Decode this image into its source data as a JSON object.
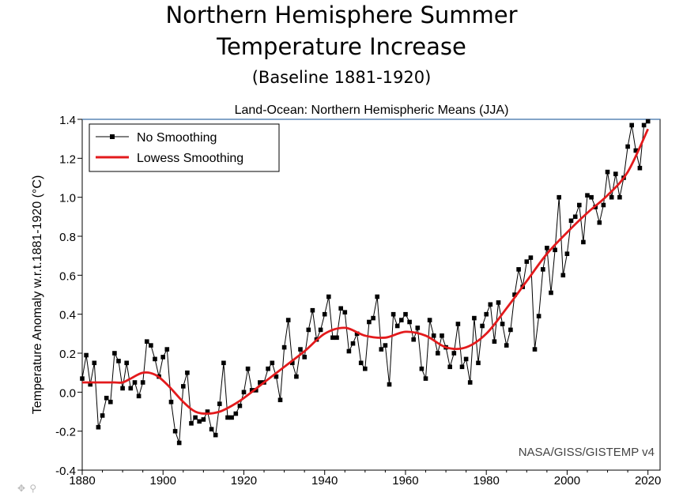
{
  "slide": {
    "title_line1": "Northern Hemisphere Summer",
    "title_line2": "Temperature Increase",
    "title_line3": "(Baseline 1881-1920)"
  },
  "toolbar": {
    "icons": [
      "move-icon",
      "zoom-icon"
    ]
  },
  "chart_data": {
    "type": "line",
    "title": "Land-Ocean: Northern Hemispheric Means (JJA)",
    "xlabel": "",
    "ylabel": "Temperature Anomaly w.r.t.1881-1920 (°C)",
    "source_label": "NASA/GISS/GISTEMP v4",
    "xlim": [
      1880,
      2023
    ],
    "ylim": [
      -0.4,
      1.4
    ],
    "xticks": [
      1880,
      1900,
      1920,
      1940,
      1960,
      1980,
      2000,
      2020
    ],
    "yticks": [
      "-0.4",
      "-0.2",
      "0.0",
      "0.2",
      "0.4",
      "0.6",
      "0.8",
      "1.0",
      "1.2",
      "1.4"
    ],
    "grid": false,
    "legend_position": "top-left",
    "colors": {
      "raw": "#000000",
      "smooth": "#e31a1c",
      "reference_line": "#3b6ea8"
    },
    "series": [
      {
        "name": "No Smoothing",
        "x_start": 1880,
        "values": [
          0.07,
          0.19,
          0.04,
          0.15,
          -0.18,
          -0.12,
          -0.03,
          -0.05,
          0.2,
          0.16,
          0.02,
          0.15,
          0.02,
          0.05,
          -0.02,
          0.05,
          0.26,
          0.24,
          0.17,
          0.08,
          0.18,
          0.22,
          -0.05,
          -0.2,
          -0.26,
          0.03,
          0.1,
          -0.16,
          -0.13,
          -0.15,
          -0.14,
          -0.1,
          -0.19,
          -0.22,
          -0.06,
          0.15,
          -0.13,
          -0.13,
          -0.11,
          -0.07,
          0.0,
          0.12,
          0.01,
          0.01,
          0.05,
          0.05,
          0.12,
          0.15,
          0.08,
          -0.04,
          0.23,
          0.37,
          0.15,
          0.08,
          0.22,
          0.18,
          0.32,
          0.42,
          0.27,
          0.32,
          0.4,
          0.49,
          0.28,
          0.28,
          0.43,
          0.41,
          0.21,
          0.25,
          0.3,
          0.15,
          0.12,
          0.36,
          0.38,
          0.49,
          0.22,
          0.24,
          0.04,
          0.4,
          0.34,
          0.37,
          0.4,
          0.36,
          0.27,
          0.33,
          0.12,
          0.07,
          0.37,
          0.29,
          0.2,
          0.29,
          0.23,
          0.13,
          0.2,
          0.35,
          0.13,
          0.17,
          0.05,
          0.38,
          0.15,
          0.34,
          0.4,
          0.45,
          0.26,
          0.46,
          0.35,
          0.24,
          0.32,
          0.5,
          0.63,
          0.54,
          0.67,
          0.69,
          0.22,
          0.39,
          0.63,
          0.74,
          0.51,
          0.73,
          1.0,
          0.6,
          0.71,
          0.88,
          0.9,
          0.96,
          0.77,
          1.01,
          1.0,
          0.95,
          0.87,
          0.96,
          1.13,
          1.0,
          1.12,
          1.0,
          1.1,
          1.26,
          1.37,
          1.24,
          1.15,
          1.37,
          1.39
        ]
      },
      {
        "name": "Lowess Smoothing",
        "x": [
          1880,
          1884,
          1888,
          1890,
          1892,
          1895,
          1898,
          1901,
          1905,
          1908,
          1911,
          1914,
          1917,
          1920,
          1925,
          1930,
          1935,
          1940,
          1945,
          1950,
          1955,
          1960,
          1965,
          1970,
          1975,
          1980,
          1985,
          1990,
          1995,
          2000,
          2005,
          2010,
          2015,
          2020
        ],
        "values": [
          0.05,
          0.05,
          0.05,
          0.05,
          0.07,
          0.1,
          0.09,
          0.04,
          -0.05,
          -0.1,
          -0.11,
          -0.1,
          -0.07,
          -0.03,
          0.05,
          0.13,
          0.21,
          0.3,
          0.33,
          0.29,
          0.28,
          0.31,
          0.29,
          0.23,
          0.23,
          0.3,
          0.43,
          0.57,
          0.71,
          0.82,
          0.92,
          1.01,
          1.13,
          1.35
        ]
      }
    ]
  }
}
